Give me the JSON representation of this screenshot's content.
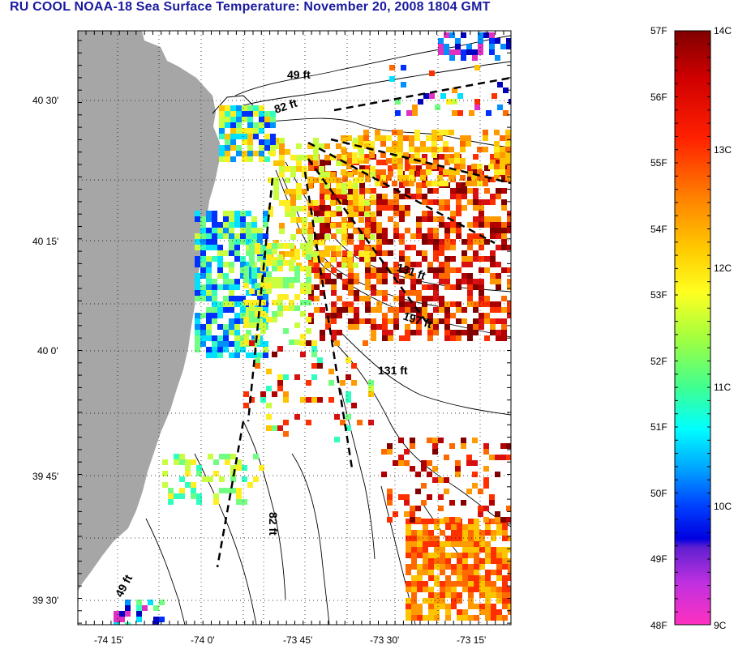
{
  "title": "RU COOL  NOAA-18  Sea Surface Temperature:  November 20, 2008 1804 GMT",
  "lat_labels": [
    "40 30'",
    "40 15'",
    "40 0'",
    "39 45'",
    "39 30'"
  ],
  "lon_labels": [
    "-74 15'",
    "-74 0'",
    "-73 45'",
    "-73 30'",
    "-73 15'"
  ],
  "depth_labels": [
    "49 ft",
    "82 ft",
    "131 ft",
    "197 ft",
    "131 ft",
    "82 ft",
    "49 ft"
  ],
  "colorbar": {
    "fahrenheit_labels": [
      "57F",
      "56F",
      "55F",
      "54F",
      "53F",
      "52F",
      "51F",
      "50F",
      "49F",
      "48F"
    ],
    "celsius_labels": [
      "14C",
      "13C",
      "12C",
      "11C",
      "10C",
      "9C"
    ]
  },
  "colors": {
    "land": "#a6a6a6",
    "title": "#1a1aa0",
    "warm": "#c81010",
    "cool": "#1040ff"
  }
}
